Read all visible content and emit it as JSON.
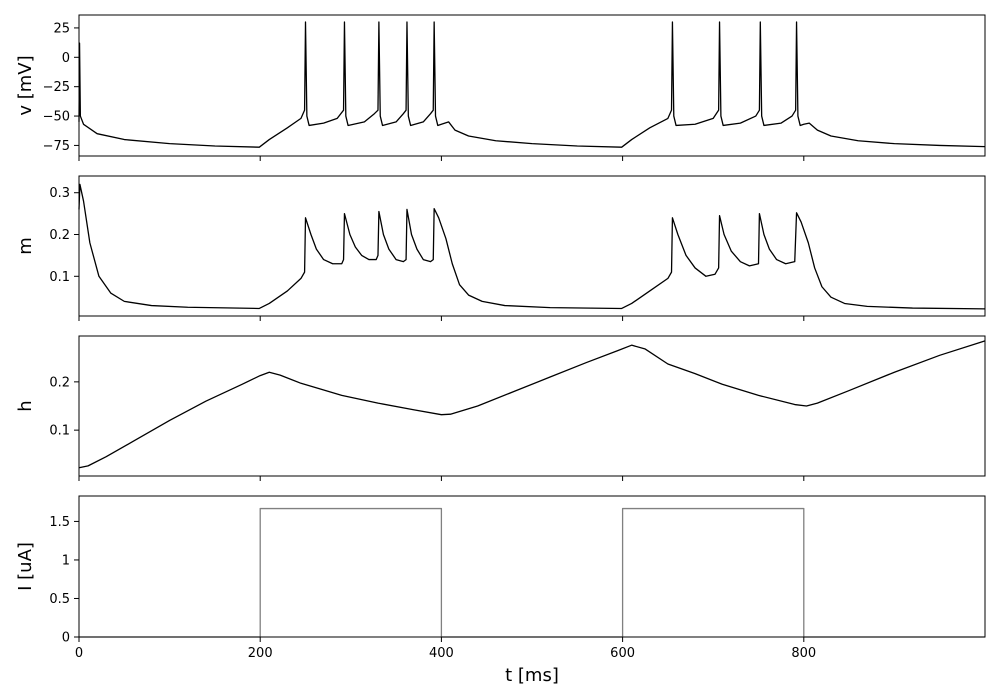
{
  "chart_data": [
    {
      "type": "line",
      "ylabel": "v [mV]",
      "xlim": [
        0,
        1000
      ],
      "ylim": [
        -84,
        36
      ],
      "yticks": [
        -75,
        -50,
        -25,
        0,
        25
      ],
      "xticks": [
        0,
        200,
        400,
        600,
        800
      ],
      "show_xticklabels": false,
      "series": [
        {
          "color": "#000000",
          "points": [
            [
              0,
              -55
            ],
            [
              0.6,
              12
            ],
            [
              1.5,
              -50
            ],
            [
              5,
              -57
            ],
            [
              20,
              -65
            ],
            [
              50,
              -70
            ],
            [
              100,
              -73.5
            ],
            [
              150,
              -75.5
            ],
            [
              199,
              -76.5
            ],
            [
              210,
              -70
            ],
            [
              230,
              -60
            ],
            [
              245,
              -52
            ],
            [
              249,
              -45
            ],
            [
              250,
              30
            ],
            [
              251.5,
              -50
            ],
            [
              254,
              -58
            ],
            [
              270,
              -56
            ],
            [
              285,
              -52
            ],
            [
              292,
              -45
            ],
            [
              293,
              30
            ],
            [
              294.5,
              -50
            ],
            [
              297,
              -58
            ],
            [
              315,
              -55
            ],
            [
              326,
              -48
            ],
            [
              330,
              -45
            ],
            [
              331,
              30
            ],
            [
              332.5,
              -50
            ],
            [
              335,
              -58
            ],
            [
              350,
              -55
            ],
            [
              358,
              -48
            ],
            [
              361,
              -45
            ],
            [
              362,
              30
            ],
            [
              363.5,
              -50
            ],
            [
              366,
              -58
            ],
            [
              380,
              -55
            ],
            [
              388,
              -48
            ],
            [
              391,
              -45
            ],
            [
              392,
              30
            ],
            [
              393.5,
              -50
            ],
            [
              396,
              -58
            ],
            [
              400,
              -57
            ],
            [
              408,
              -55
            ],
            [
              415,
              -62
            ],
            [
              430,
              -67
            ],
            [
              460,
              -71
            ],
            [
              500,
              -73.5
            ],
            [
              550,
              -75.5
            ],
            [
              599,
              -76.5
            ],
            [
              610,
              -70
            ],
            [
              630,
              -60
            ],
            [
              650,
              -52
            ],
            [
              654,
              -45
            ],
            [
              655,
              30
            ],
            [
              656.5,
              -50
            ],
            [
              659,
              -58
            ],
            [
              680,
              -57
            ],
            [
              700,
              -52
            ],
            [
              706,
              -45
            ],
            [
              707,
              30
            ],
            [
              708.5,
              -50
            ],
            [
              711,
              -58
            ],
            [
              730,
              -56
            ],
            [
              747,
              -50
            ],
            [
              751,
              -45
            ],
            [
              752,
              30
            ],
            [
              753.5,
              -50
            ],
            [
              756,
              -58
            ],
            [
              775,
              -56
            ],
            [
              787,
              -50
            ],
            [
              791,
              -45
            ],
            [
              792,
              30
            ],
            [
              793.5,
              -50
            ],
            [
              796,
              -58
            ],
            [
              800,
              -57
            ],
            [
              806,
              -56
            ],
            [
              815,
              -62
            ],
            [
              830,
              -67
            ],
            [
              860,
              -71
            ],
            [
              900,
              -73.5
            ],
            [
              950,
              -75
            ],
            [
              1000,
              -76
            ]
          ]
        }
      ]
    },
    {
      "type": "line",
      "ylabel": "m",
      "xlim": [
        0,
        1000
      ],
      "ylim": [
        0.005,
        0.34
      ],
      "yticks": [
        0.1,
        0.2,
        0.3
      ],
      "xticks": [
        0,
        200,
        400,
        600,
        800
      ],
      "show_xticklabels": false,
      "series": [
        {
          "color": "#000000",
          "points": [
            [
              0,
              0.26
            ],
            [
              1,
              0.32
            ],
            [
              5,
              0.28
            ],
            [
              12,
              0.18
            ],
            [
              22,
              0.1
            ],
            [
              35,
              0.06
            ],
            [
              50,
              0.04
            ],
            [
              80,
              0.03
            ],
            [
              120,
              0.026
            ],
            [
              199,
              0.023
            ],
            [
              210,
              0.035
            ],
            [
              230,
              0.065
            ],
            [
              245,
              0.095
            ],
            [
              249,
              0.11
            ],
            [
              250,
              0.24
            ],
            [
              256,
              0.2
            ],
            [
              262,
              0.165
            ],
            [
              270,
              0.14
            ],
            [
              280,
              0.13
            ],
            [
              290,
              0.13
            ],
            [
              292,
              0.14
            ],
            [
              293,
              0.25
            ],
            [
              299,
              0.2
            ],
            [
              305,
              0.17
            ],
            [
              312,
              0.15
            ],
            [
              320,
              0.14
            ],
            [
              328,
              0.14
            ],
            [
              330,
              0.15
            ],
            [
              331,
              0.255
            ],
            [
              336,
              0.2
            ],
            [
              342,
              0.165
            ],
            [
              350,
              0.14
            ],
            [
              358,
              0.135
            ],
            [
              361,
              0.14
            ],
            [
              362,
              0.26
            ],
            [
              367,
              0.2
            ],
            [
              373,
              0.165
            ],
            [
              380,
              0.14
            ],
            [
              388,
              0.135
            ],
            [
              391,
              0.14
            ],
            [
              392,
              0.262
            ],
            [
              397,
              0.24
            ],
            [
              405,
              0.19
            ],
            [
              412,
              0.13
            ],
            [
              420,
              0.08
            ],
            [
              430,
              0.055
            ],
            [
              445,
              0.04
            ],
            [
              470,
              0.03
            ],
            [
              520,
              0.025
            ],
            [
              599,
              0.023
            ],
            [
              610,
              0.035
            ],
            [
              630,
              0.065
            ],
            [
              650,
              0.095
            ],
            [
              654,
              0.11
            ],
            [
              655,
              0.24
            ],
            [
              661,
              0.2
            ],
            [
              670,
              0.15
            ],
            [
              680,
              0.12
            ],
            [
              692,
              0.1
            ],
            [
              702,
              0.105
            ],
            [
              706,
              0.12
            ],
            [
              707,
              0.245
            ],
            [
              712,
              0.2
            ],
            [
              720,
              0.16
            ],
            [
              730,
              0.135
            ],
            [
              740,
              0.125
            ],
            [
              750,
              0.13
            ],
            [
              751,
              0.25
            ],
            [
              756,
              0.2
            ],
            [
              762,
              0.165
            ],
            [
              770,
              0.14
            ],
            [
              780,
              0.13
            ],
            [
              790,
              0.135
            ],
            [
              792,
              0.252
            ],
            [
              797,
              0.23
            ],
            [
              805,
              0.18
            ],
            [
              812,
              0.12
            ],
            [
              820,
              0.075
            ],
            [
              830,
              0.05
            ],
            [
              845,
              0.035
            ],
            [
              870,
              0.028
            ],
            [
              920,
              0.024
            ],
            [
              1000,
              0.022
            ]
          ]
        }
      ]
    },
    {
      "type": "line",
      "ylabel": "h",
      "xlim": [
        0,
        1000
      ],
      "ylim": [
        0.005,
        0.295
      ],
      "yticks": [
        0.1,
        0.2
      ],
      "xticks": [
        0,
        200,
        400,
        600,
        800
      ],
      "show_xticklabels": false,
      "series": [
        {
          "color": "#000000",
          "points": [
            [
              0,
              0.022
            ],
            [
              10,
              0.026
            ],
            [
              30,
              0.045
            ],
            [
              60,
              0.077
            ],
            [
              100,
              0.12
            ],
            [
              140,
              0.16
            ],
            [
              180,
              0.195
            ],
            [
              200,
              0.213
            ],
            [
              210,
              0.22
            ],
            [
              222,
              0.214
            ],
            [
              245,
              0.197
            ],
            [
              265,
              0.186
            ],
            [
              290,
              0.172
            ],
            [
              330,
              0.156
            ],
            [
              370,
              0.142
            ],
            [
              400,
              0.132
            ],
            [
              410,
              0.133
            ],
            [
              440,
              0.15
            ],
            [
              480,
              0.18
            ],
            [
              520,
              0.21
            ],
            [
              560,
              0.24
            ],
            [
              595,
              0.265
            ],
            [
              610,
              0.276
            ],
            [
              625,
              0.268
            ],
            [
              650,
              0.237
            ],
            [
              680,
              0.217
            ],
            [
              710,
              0.195
            ],
            [
              750,
              0.172
            ],
            [
              790,
              0.153
            ],
            [
              803,
              0.15
            ],
            [
              815,
              0.156
            ],
            [
              850,
              0.182
            ],
            [
              900,
              0.22
            ],
            [
              950,
              0.255
            ],
            [
              1000,
              0.285
            ]
          ]
        }
      ]
    },
    {
      "type": "line",
      "ylabel": "I [uA]",
      "xlabel": "t [ms]",
      "xlim": [
        0,
        1000
      ],
      "ylim": [
        0,
        1.83
      ],
      "yticks": [
        0,
        0.5,
        1.0,
        1.5
      ],
      "xticks": [
        0,
        200,
        400,
        600,
        800
      ],
      "show_xticklabels": true,
      "series": [
        {
          "color": "#808080",
          "points": [
            [
              0,
              0
            ],
            [
              200,
              0
            ],
            [
              200,
              1.667
            ],
            [
              400,
              1.667
            ],
            [
              400,
              0
            ],
            [
              600,
              0
            ],
            [
              600,
              1.667
            ],
            [
              800,
              1.667
            ],
            [
              800,
              0
            ],
            [
              1000,
              0
            ]
          ]
        }
      ]
    }
  ]
}
